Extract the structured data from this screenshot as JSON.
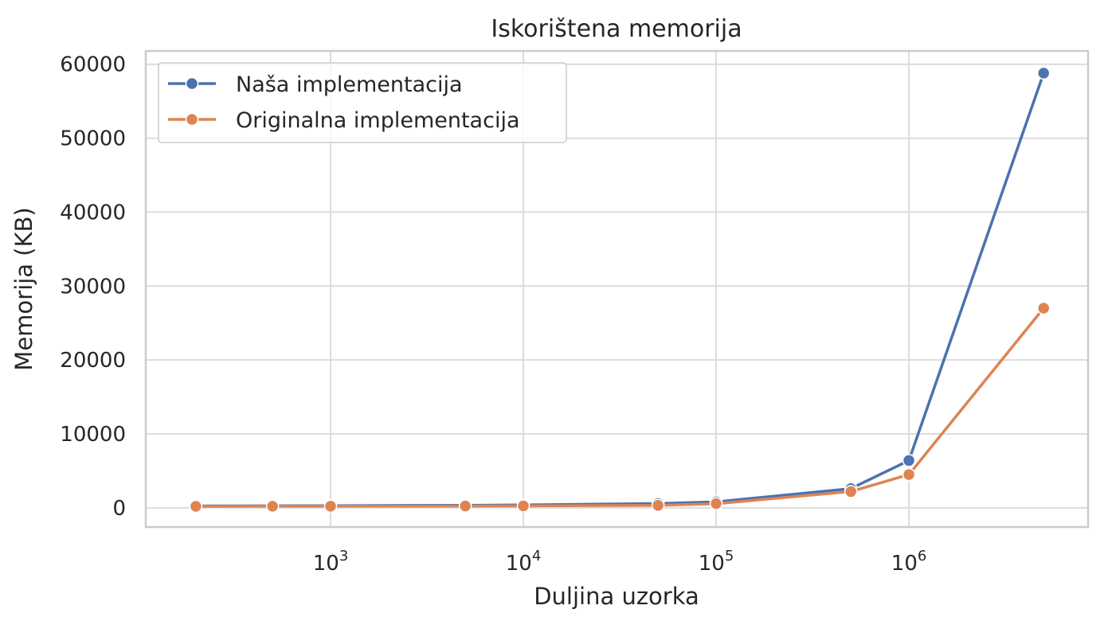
{
  "chart_data": {
    "type": "line",
    "title": "Iskorištena memorija",
    "xlabel": "Duljina uzorka",
    "ylabel": "Memorija (KB)",
    "x_scale": "log",
    "x_base": "10",
    "xlim": [
      110,
      8500000
    ],
    "ylim": [
      -2600,
      61800
    ],
    "x_ticks": [
      {
        "value": 1000,
        "exp": "3"
      },
      {
        "value": 10000,
        "exp": "4"
      },
      {
        "value": 100000,
        "exp": "5"
      },
      {
        "value": 1000000,
        "exp": "6"
      }
    ],
    "y_ticks": [
      {
        "value": 0,
        "label": "0"
      },
      {
        "value": 10000,
        "label": "10000"
      },
      {
        "value": 20000,
        "label": "20000"
      },
      {
        "value": 30000,
        "label": "30000"
      },
      {
        "value": 40000,
        "label": "40000"
      },
      {
        "value": 50000,
        "label": "50000"
      },
      {
        "value": 60000,
        "label": "60000"
      }
    ],
    "grid": true,
    "legend_position": "top-left",
    "x": [
      200,
      500,
      1000,
      5000,
      10000,
      50000,
      100000,
      500000,
      1000000,
      5000000
    ],
    "series": [
      {
        "name": "Naša implementacija",
        "color": "#4c72b0",
        "values": [
          250,
          270,
          290,
          340,
          390,
          580,
          800,
          2600,
          6400,
          58800
        ]
      },
      {
        "name": "Originalna implementacija",
        "color": "#dd8452",
        "values": [
          200,
          210,
          220,
          240,
          260,
          330,
          560,
          2200,
          4500,
          27000
        ]
      }
    ]
  }
}
